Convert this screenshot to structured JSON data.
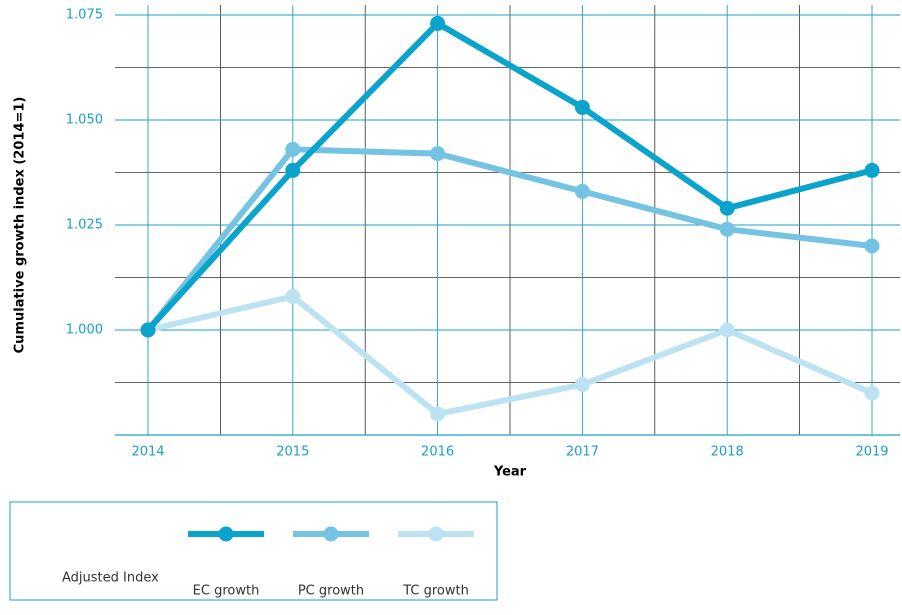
{
  "chart_data": {
    "type": "line",
    "x_label": "Year",
    "y_label": "Cumulative growth index (2014=1)",
    "categories": [
      "2014",
      "2015",
      "2016",
      "2017",
      "2018",
      "2019"
    ],
    "series": [
      {
        "name": "EC growth",
        "color": "#0aa3cc",
        "values": [
          1.0,
          1.038,
          1.073,
          1.053,
          1.029,
          1.038
        ]
      },
      {
        "name": "PC growth",
        "color": "#74c3e2",
        "values": [
          1.0,
          1.043,
          1.042,
          1.033,
          1.024,
          1.02
        ]
      },
      {
        "name": "TC growth",
        "color": "#bde3f2",
        "values": [
          1.0,
          1.008,
          0.98,
          0.987,
          1.0,
          0.985
        ]
      }
    ],
    "ylim": [
      0.975,
      1.075
    ],
    "yticks": [
      {
        "value": 1.0,
        "label": "1.000"
      },
      {
        "value": 1.025,
        "label": "1.025"
      },
      {
        "value": 1.05,
        "label": "1.050"
      },
      {
        "value": 1.075,
        "label": "1.075"
      }
    ],
    "grid": true,
    "legend_title": "Adjusted Index",
    "legend_position": "bottom-left"
  }
}
